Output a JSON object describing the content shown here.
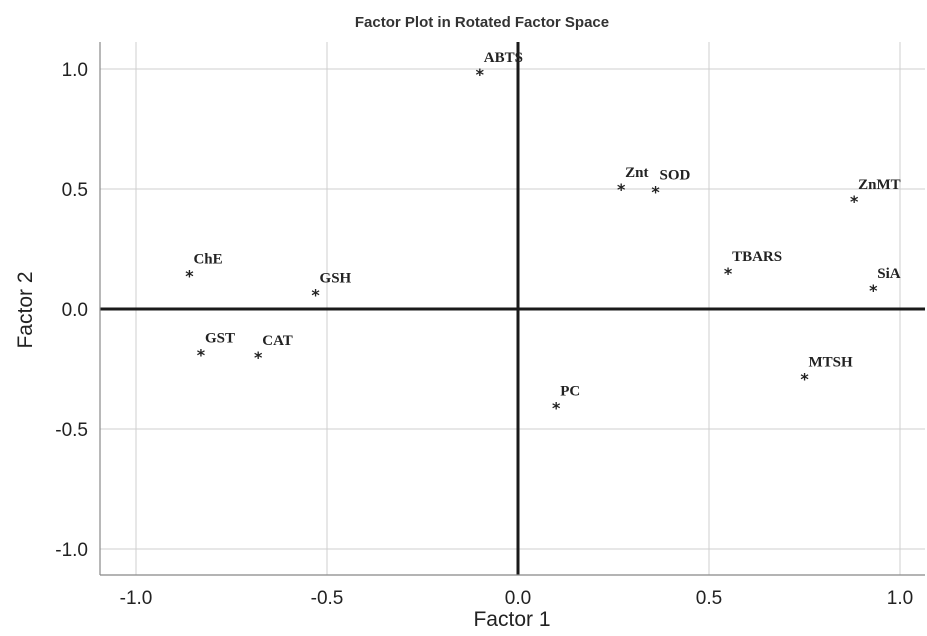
{
  "chart_data": {
    "type": "scatter",
    "title": "Factor Plot in Rotated Factor Space",
    "xlabel": "Factor 1",
    "ylabel": "Factor 2",
    "xlim": [
      -1.1,
      1.08
    ],
    "ylim": [
      -1.12,
      1.12
    ],
    "xticks": [
      -1.0,
      -0.5,
      0.0,
      0.5,
      1.0
    ],
    "xtick_labels": [
      "-1.0",
      "-0.5",
      "0.0",
      "0.5",
      "1.0"
    ],
    "yticks": [
      -1.0,
      -0.5,
      0.0,
      0.5,
      1.0
    ],
    "ytick_labels": [
      "-1.0",
      "-0.5",
      "0.0",
      "0.5",
      "1.0"
    ],
    "grid": true,
    "marker": "*",
    "points": [
      {
        "label": "ABTS",
        "x": -0.1,
        "y": 0.98
      },
      {
        "label": "Znt",
        "x": 0.27,
        "y": 0.5
      },
      {
        "label": "SOD",
        "x": 0.36,
        "y": 0.49
      },
      {
        "label": "ZnMT",
        "x": 0.88,
        "y": 0.45
      },
      {
        "label": "ChE",
        "x": -0.86,
        "y": 0.14
      },
      {
        "label": "GSH",
        "x": -0.53,
        "y": 0.06
      },
      {
        "label": "TBARS",
        "x": 0.55,
        "y": 0.15
      },
      {
        "label": "SiA",
        "x": 0.93,
        "y": 0.08
      },
      {
        "label": "GST",
        "x": -0.83,
        "y": -0.19
      },
      {
        "label": "CAT",
        "x": -0.68,
        "y": -0.2
      },
      {
        "label": "PC",
        "x": 0.1,
        "y": -0.41
      },
      {
        "label": "MTSH",
        "x": 0.75,
        "y": -0.29
      }
    ]
  }
}
